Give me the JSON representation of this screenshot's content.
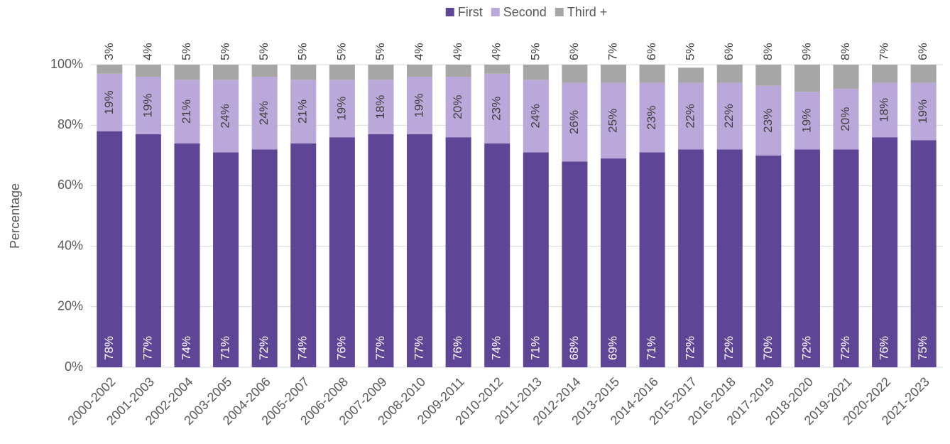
{
  "chart_data": {
    "type": "stacked_bar",
    "y_label": "Percentage",
    "categories": [
      "2000-2002",
      "2001-2003",
      "2002-2004",
      "2003-2005",
      "2004-2006",
      "2005-2007",
      "2006-2008",
      "2007-2009",
      "2008-2010",
      "2009-2011",
      "2010-2012",
      "2011-2013",
      "2012-2014",
      "2013-2015",
      "2014-2016",
      "2015-2017",
      "2016-2018",
      "2017-2019",
      "2018-2020",
      "2019-2021",
      "2020-2022",
      "2021-2023"
    ],
    "series": [
      {
        "name": "First",
        "color": "#5e4596",
        "values": [
          78,
          77,
          74,
          71,
          72,
          74,
          76,
          77,
          77,
          76,
          74,
          71,
          68,
          69,
          71,
          72,
          72,
          70,
          72,
          72,
          76,
          75
        ],
        "value_labels": [
          "78%",
          "77%",
          "74%",
          "71%",
          "72%",
          "74%",
          "76%",
          "77%",
          "77%",
          "76%",
          "74%",
          "71%",
          "68%",
          "69%",
          "71%",
          "72%",
          "72%",
          "70%",
          "72%",
          "72%",
          "76%",
          "75%"
        ]
      },
      {
        "name": "Second",
        "color": "#b9a8d9",
        "values": [
          19,
          19,
          21,
          24,
          24,
          21,
          19,
          18,
          19,
          20,
          23,
          24,
          26,
          25,
          23,
          22,
          22,
          23,
          19,
          20,
          18,
          19
        ],
        "value_labels": [
          "19%",
          "19%",
          "21%",
          "24%",
          "24%",
          "21%",
          "19%",
          "18%",
          "19%",
          "20%",
          "23%",
          "24%",
          "26%",
          "25%",
          "23%",
          "22%",
          "22%",
          "23%",
          "19%",
          "20%",
          "18%",
          "19%"
        ]
      },
      {
        "name": "Third +",
        "color": "#a6a6a6",
        "values": [
          3,
          4,
          5,
          5,
          5,
          5,
          5,
          5,
          4,
          4,
          4,
          5,
          6,
          7,
          6,
          5,
          6,
          8,
          9,
          8,
          7,
          6
        ],
        "value_labels": [
          "3%",
          "4%",
          "5%",
          "5%",
          "5%",
          "5%",
          "5%",
          "5%",
          "4%",
          "4%",
          "4%",
          "5%",
          "6%",
          "7%",
          "6%",
          "5%",
          "6%",
          "8%",
          "9%",
          "8%",
          "7%",
          "6%"
        ]
      }
    ],
    "ylim": [
      0,
      100
    ],
    "yticks": [
      {
        "value": 0,
        "label": "0%"
      },
      {
        "value": 20,
        "label": "20%"
      },
      {
        "value": 40,
        "label": "40%"
      },
      {
        "value": 60,
        "label": "60%"
      },
      {
        "value": 80,
        "label": "80%"
      },
      {
        "value": 100,
        "label": "100%"
      }
    ],
    "grid": true,
    "legend": "top"
  }
}
